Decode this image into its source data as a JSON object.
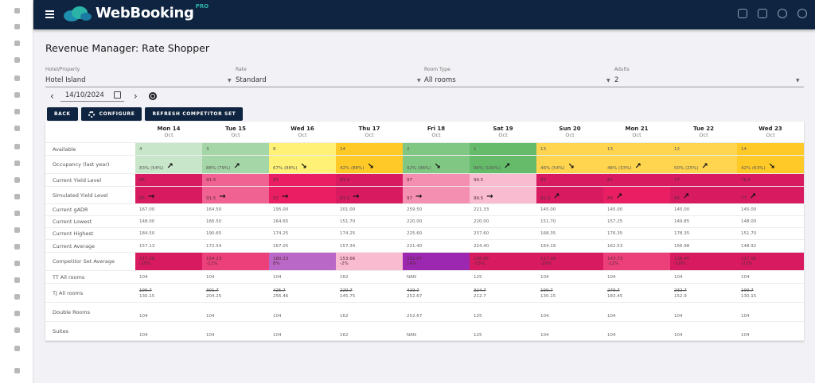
{
  "app": {
    "name": "WebBooking",
    "badge": "PRO"
  },
  "header_icons": [
    "dashboard-add-icon",
    "notification-icon",
    "help-icon",
    "settings-icon"
  ],
  "page_title": "Revenue Manager: Rate Shopper",
  "filters": [
    {
      "label": "Hotel/Property",
      "value": "Hotel Island"
    },
    {
      "label": "Rate",
      "value": "Standard"
    },
    {
      "label": "Room Type",
      "value": "All rooms"
    },
    {
      "label": "Adults",
      "value": "2"
    }
  ],
  "date": "14/10/2024",
  "buttons": {
    "back": "BACK",
    "configure": "CONFIGURE",
    "refresh": "REFRESH COMPETITOR SET"
  },
  "days": [
    {
      "day": "Mon 14",
      "month": "Oct"
    },
    {
      "day": "Tue 15",
      "month": "Oct"
    },
    {
      "day": "Wed 16",
      "month": "Oct"
    },
    {
      "day": "Thu 17",
      "month": "Oct"
    },
    {
      "day": "Fri 18",
      "month": "Oct"
    },
    {
      "day": "Sat 19",
      "month": "Oct"
    },
    {
      "day": "Sun 20",
      "month": "Oct"
    },
    {
      "day": "Mon 21",
      "month": "Oct"
    },
    {
      "day": "Tue 22",
      "month": "Oct"
    },
    {
      "day": "Wed 23",
      "month": "Oct"
    }
  ],
  "rows": {
    "available": {
      "label": "Available",
      "values": [
        "4",
        "3",
        "8",
        "14",
        "2",
        "1",
        "13",
        "13",
        "12",
        "14"
      ],
      "colors": [
        "#c8e6c9",
        "#a5d6a7",
        "#fff176",
        "#ffca28",
        "#81c784",
        "#66bb6a",
        "#ffd54f",
        "#ffd54f",
        "#ffd54f",
        "#ffca28"
      ]
    },
    "occupancy": {
      "label": "Occupancy (last year)",
      "values": [
        "83% (54%)",
        "88% (79%)",
        "67% (88%)",
        "42% (88%)",
        "92% (96%)",
        "96% (100%)",
        "46% (54%)",
        "46% (33%)",
        "50% (25%)",
        "42% (63%)"
      ],
      "trends": [
        "up",
        "up",
        "down",
        "down",
        "down",
        "up",
        "down",
        "up",
        "up",
        "down"
      ]
    },
    "current_yield": {
      "label": "Current Yield Level",
      "values": [
        "85",
        "91.5",
        "87",
        "83.5",
        "97",
        "99.5",
        "83",
        "81",
        "77",
        "76.5"
      ],
      "colors": [
        "#d81b60",
        "#f06292",
        "#e91e63",
        "#d81b60",
        "#f48fb1",
        "#f8bbd0",
        "#d81b60",
        "#d81b60",
        "#d81b60",
        "#d81b60"
      ]
    },
    "simulated_yield": {
      "label": "Simulated Yield Level",
      "values": [
        "85",
        "91.5",
        "87",
        "83.5",
        "97",
        "99.5",
        "82.5",
        "84",
        "84",
        "77"
      ],
      "trends": [
        "flat",
        "flat",
        "flat",
        "flat",
        "flat",
        "flat",
        "up",
        "up",
        "up",
        "up"
      ],
      "colors": [
        "#d81b60",
        "#f06292",
        "#e91e63",
        "#d81b60",
        "#f48fb1",
        "#f8bbd0",
        "#d81b60",
        "#e91e63",
        "#d81b60",
        "#d81b60"
      ]
    },
    "gadr": {
      "label": "Current gADR",
      "values": [
        "167.00",
        "164.50",
        "195.00",
        "201.00",
        "259.50",
        "221.33",
        "145.00",
        "145.00",
        "145.00",
        "145.00"
      ]
    },
    "lowest": {
      "label": "Current Lowest",
      "values": [
        "148.00",
        "166.50",
        "164.65",
        "151.70",
        "220.00",
        "220.00",
        "151.70",
        "157.25",
        "149.85",
        "148.00"
      ]
    },
    "highest": {
      "label": "Current Highest",
      "values": [
        "184.50",
        "190.65",
        "174.25",
        "174.25",
        "225.60",
        "237.60",
        "168.35",
        "176.35",
        "178.35",
        "151.70"
      ]
    },
    "average": {
      "label": "Current Average",
      "values": [
        "157.13",
        "172.54",
        "167.05",
        "157.34",
        "221.40",
        "224.40",
        "164.19",
        "162.53",
        "156.98",
        "148.92"
      ]
    },
    "compset": {
      "label": "Competitor Set Average",
      "values": [
        "117.08",
        "154.13",
        "180.23",
        "153.66",
        "252.67",
        "168.85",
        "117.08",
        "143.73",
        "128.45",
        "117.08"
      ],
      "pct": [
        "-25%",
        "-11%",
        "8%",
        "-2%",
        "14%",
        "-25%",
        "-29%",
        "-12%",
        "-18%",
        "-21%"
      ],
      "colors": [
        "#d81b60",
        "#ec407a",
        "#ba68c8",
        "#f8bbd0",
        "#9c27b0",
        "#d81b60",
        "#d81b60",
        "#ec407a",
        "#d81b60",
        "#d81b60"
      ]
    },
    "tt_all": {
      "label": "TT All rooms",
      "values": [
        "104",
        "104",
        "104",
        "162",
        "NAN",
        "125",
        "104",
        "104",
        "104",
        "104"
      ]
    },
    "tj_all": {
      "label": "TJ All rooms",
      "old": [
        "199.7",
        "301.7",
        "425.7",
        "229.7",
        "419.7",
        "324.7",
        "199.7",
        "279.7",
        "232.7",
        "199.7"
      ],
      "values": [
        "130.15",
        "204.25",
        "256.46",
        "145.75",
        "252.67",
        "212.7",
        "130.15",
        "183.45",
        "152.9",
        "130.15"
      ]
    },
    "double": {
      "label": "Double Rooms",
      "values": [
        "104",
        "104",
        "104",
        "162",
        "252.67",
        "125",
        "104",
        "104",
        "104",
        "104"
      ]
    },
    "suites": {
      "label": "Suites",
      "values": [
        "104",
        "104",
        "104",
        "162",
        "NAN",
        "125",
        "104",
        "104",
        "104",
        "104"
      ]
    }
  }
}
